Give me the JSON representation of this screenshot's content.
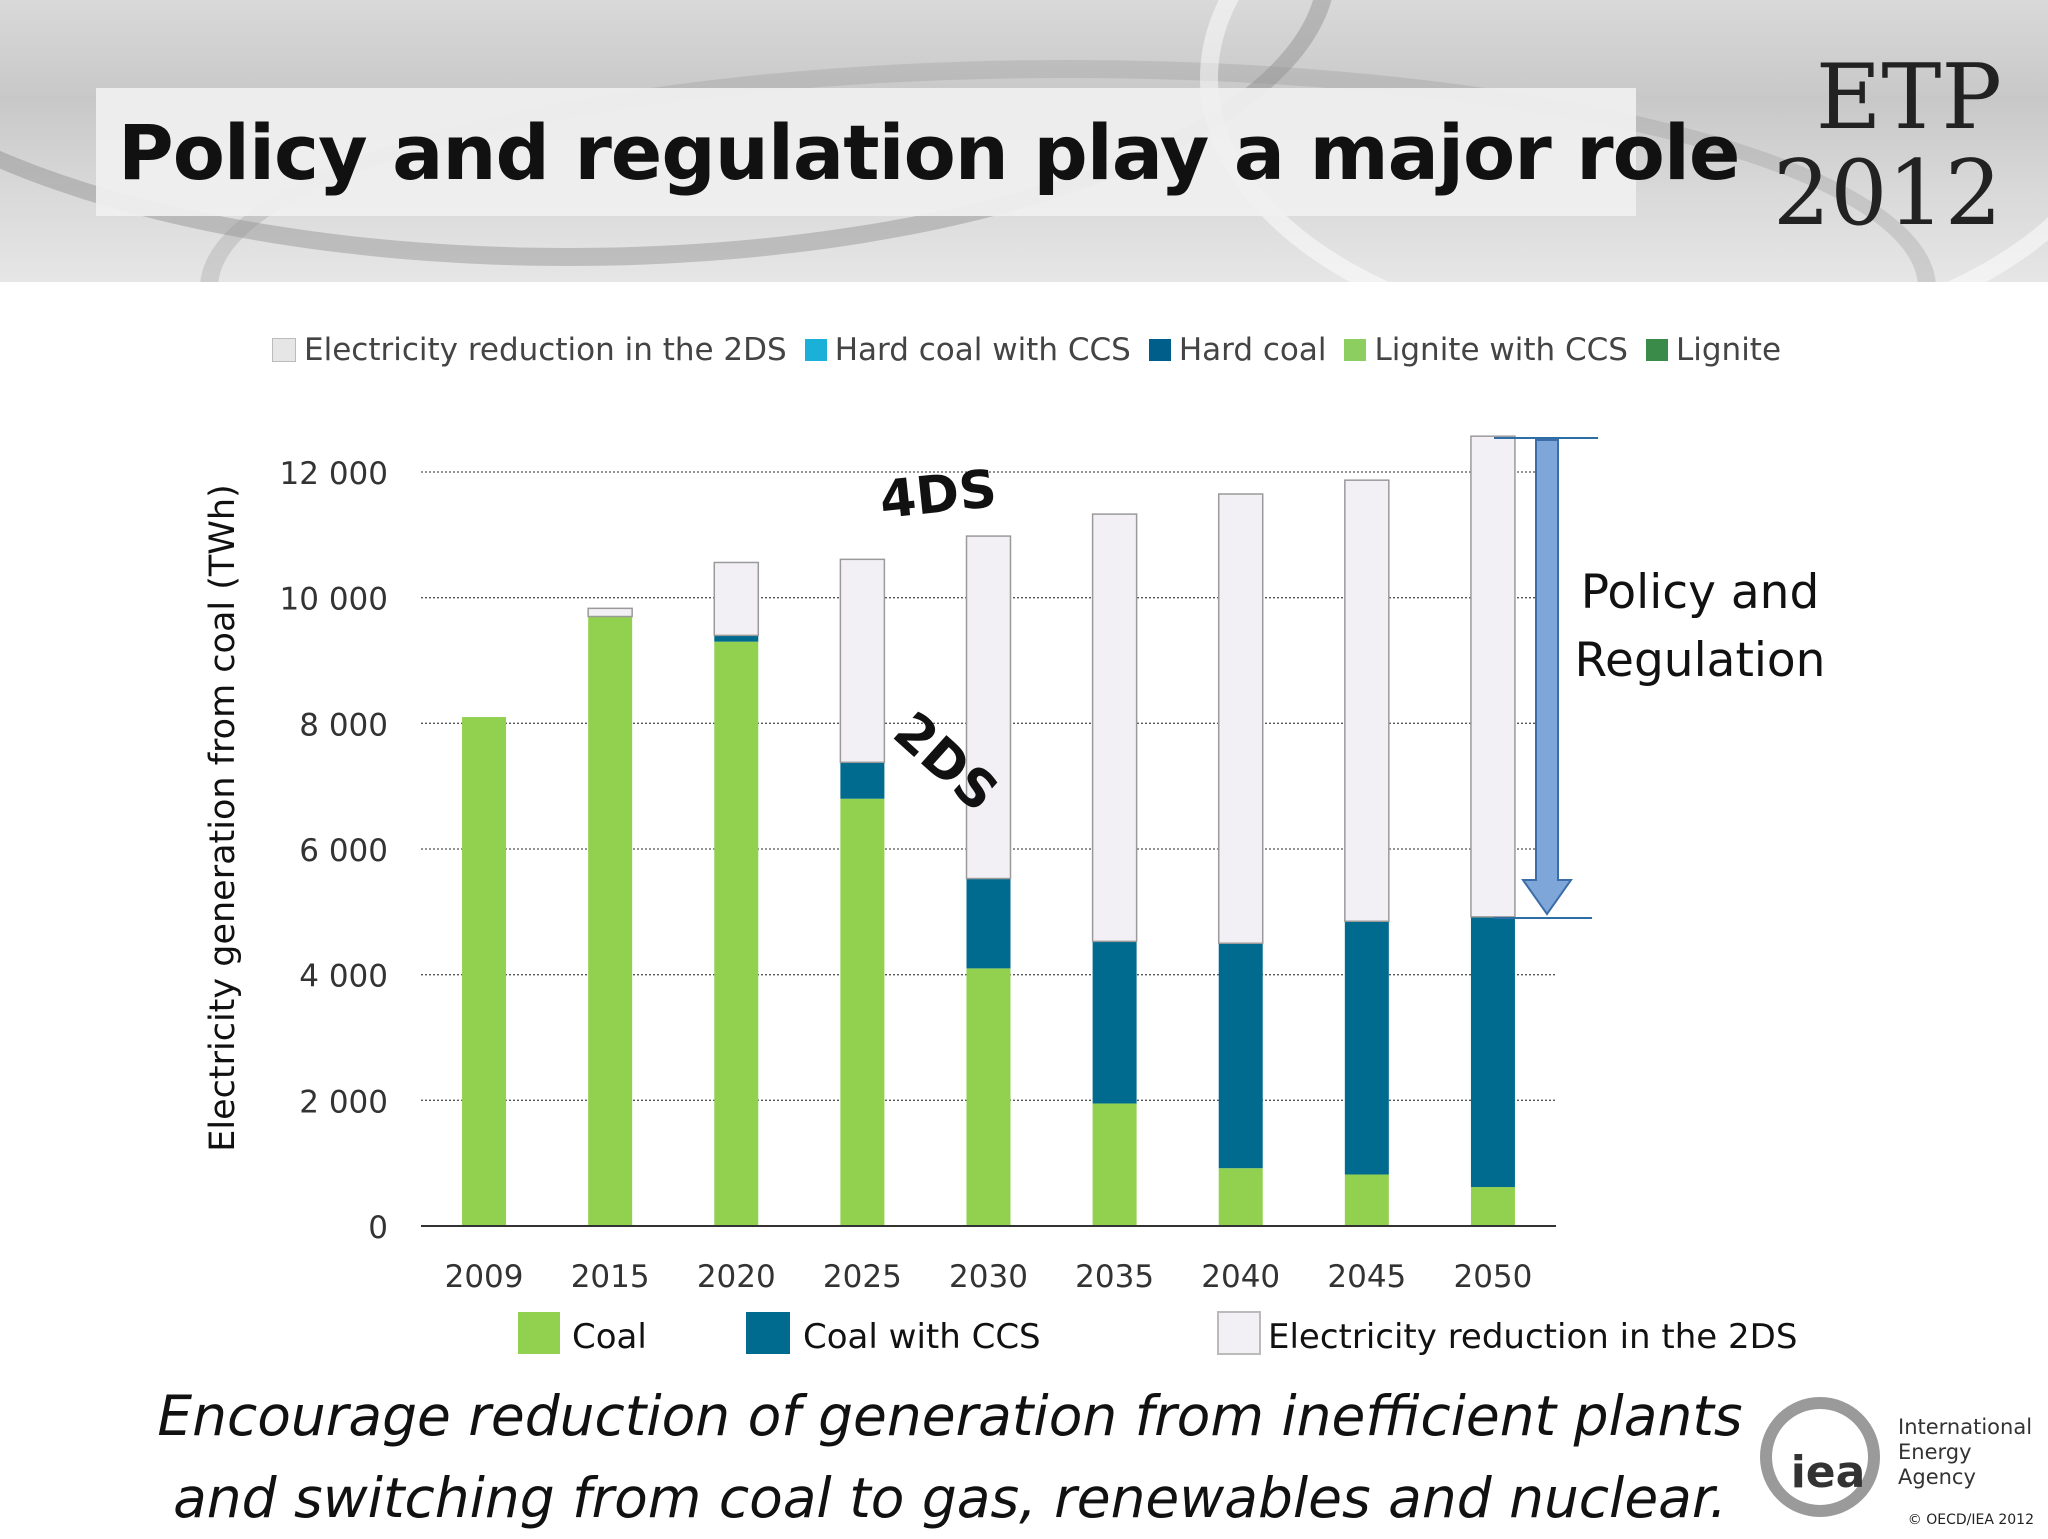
{
  "slide": {
    "title": "Policy and regulation play a major role",
    "badge_line1": "ETP",
    "badge_line2": "2012",
    "caption_line1": "Encourage reduction of generation from inefficient plants",
    "caption_line2": "and switching from coal to gas, renewables and nuclear.",
    "logo_text": "iea",
    "agency_line1": "International",
    "agency_line2": "Energy Agency",
    "copyright": "© OECD/IEA 2012"
  },
  "top_legend": [
    {
      "label": "Electricity reduction in the 2DS",
      "color": "#e6e6e6"
    },
    {
      "label": "Hard coal with CCS",
      "color": "#1ab0d8"
    },
    {
      "label": "Hard coal",
      "color": "#005f8a"
    },
    {
      "label": "Lignite with CCS",
      "color": "#8ccf60"
    },
    {
      "label": "Lignite",
      "color": "#3a8a4a"
    }
  ],
  "chart_data": {
    "type": "bar",
    "stacked": true,
    "ylabel": "Electricity generation from coal (TWh)",
    "ylim": [
      0,
      12000
    ],
    "yticks": [
      0,
      2000,
      4000,
      6000,
      8000,
      10000,
      12000
    ],
    "ytick_labels": [
      "0",
      "2 000",
      "4 000",
      "6 000",
      "8 000",
      "10 000",
      "12 000"
    ],
    "grid": true,
    "categories": [
      "2009",
      "2015",
      "2020",
      "2025",
      "2030",
      "2035",
      "2040",
      "2045",
      "2050"
    ],
    "series": [
      {
        "name": "Coal",
        "color": "#92d050",
        "values": [
          8100,
          9700,
          9300,
          6800,
          4100,
          1950,
          920,
          820,
          620
        ]
      },
      {
        "name": "Coal with CCS",
        "color": "#006b8f",
        "values": [
          0,
          0,
          100,
          580,
          1430,
          2580,
          3580,
          4030,
          4300
        ]
      },
      {
        "name": "Electricity reduction in the 2DS",
        "color": "#f2f0f4",
        "values": [
          0,
          130,
          1160,
          3230,
          5450,
          6800,
          7150,
          7020,
          7650
        ]
      }
    ],
    "legend_position": "bottom",
    "annotations": {
      "label_4ds": "4DS",
      "label_2ds": "2DS",
      "policy_line1": "Policy and",
      "policy_line2": "Regulation"
    }
  }
}
